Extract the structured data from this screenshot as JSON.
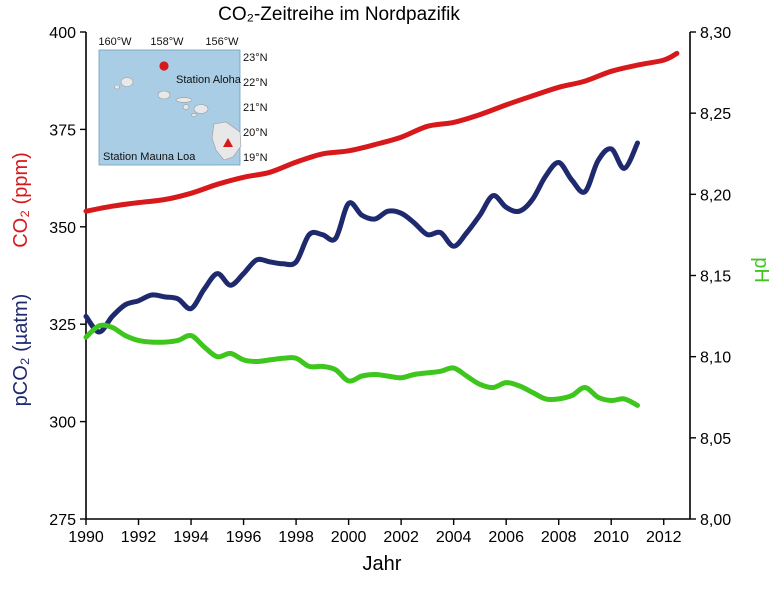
{
  "title": "CO₂-Zeitreihe im Nordpazifik",
  "chart_data": {
    "type": "line",
    "title": "CO₂-Zeitreihe im Nordpazifik",
    "xlabel": "Jahr",
    "ylabel_left_primary": "CO₂ (ppm)",
    "ylabel_left_secondary": "pCO₂ (µatm)",
    "ylabel_right": "pH",
    "xlim": [
      1990,
      2013
    ],
    "ylim_left": [
      275,
      400
    ],
    "ylim_right": [
      8.0,
      8.3
    ],
    "x_ticks": [
      "1990",
      "1992",
      "1994",
      "1996",
      "1998",
      "2000",
      "2002",
      "2004",
      "2006",
      "2008",
      "2010",
      "2012"
    ],
    "y_left_ticks": [
      "275",
      "300",
      "325",
      "350",
      "375",
      "400"
    ],
    "y_right_ticks": [
      "8,00",
      "8,05",
      "8,10",
      "8,15",
      "8,20",
      "8,25",
      "8,30"
    ],
    "grid": false,
    "series": [
      {
        "name": "CO₂ (ppm)",
        "axis": "left",
        "color": "#d7191c",
        "x": [
          1990,
          1991,
          1992,
          1993,
          1994,
          1995,
          1996,
          1997,
          1998,
          1999,
          2000,
          2001,
          2002,
          2003,
          2004,
          2005,
          2006,
          2007,
          2008,
          2009,
          2010,
          2011,
          2012,
          2012.5
        ],
        "y": [
          354,
          355.3,
          356.2,
          357,
          358.6,
          360.9,
          362.7,
          364,
          366.6,
          368.7,
          369.5,
          371.1,
          373,
          375.8,
          376.8,
          378.8,
          381.3,
          383.6,
          385.8,
          387.4,
          389.9,
          391.5,
          392.8,
          394.5
        ]
      },
      {
        "name": "pCO₂ (µatm)",
        "axis": "left",
        "color": "#1f2a6e",
        "x": [
          1990,
          1990.5,
          1991,
          1991.5,
          1992,
          1992.5,
          1993,
          1993.5,
          1994,
          1994.5,
          1995,
          1995.5,
          1996,
          1996.5,
          1997,
          1997.5,
          1998,
          1998.5,
          1999,
          1999.5,
          2000,
          2000.5,
          2001,
          2001.5,
          2002,
          2002.5,
          2003,
          2003.5,
          2004,
          2004.5,
          2005,
          2005.5,
          2006,
          2006.5,
          2007,
          2007.5,
          2008,
          2008.5,
          2009,
          2009.5,
          2010,
          2010.5,
          2011
        ],
        "y": [
          327,
          323,
          327,
          330,
          331,
          332.5,
          332,
          331.5,
          329,
          334,
          338,
          335,
          338,
          341.5,
          341,
          340.5,
          341,
          348,
          348,
          347,
          356,
          353,
          352,
          354,
          353.5,
          351,
          348,
          348.5,
          345,
          348.5,
          353,
          358,
          355,
          354,
          357,
          363,
          366.5,
          362,
          359,
          367,
          370,
          365,
          371.5
        ]
      },
      {
        "name": "pH",
        "axis": "right",
        "color": "#3ec61d",
        "x": [
          1990,
          1990.5,
          1991,
          1991.5,
          1992,
          1992.5,
          1993,
          1993.5,
          1994,
          1994.5,
          1995,
          1995.5,
          1996,
          1996.5,
          1997,
          1997.5,
          1998,
          1998.5,
          1999,
          1999.5,
          2000,
          2000.5,
          2001,
          2001.5,
          2002,
          2002.5,
          2003,
          2003.5,
          2004,
          2004.5,
          2005,
          2005.5,
          2006,
          2006.5,
          2007,
          2007.5,
          2008,
          2008.5,
          2009,
          2009.5,
          2010,
          2010.5,
          2011
        ],
        "y": [
          8.112,
          8.119,
          8.118,
          8.113,
          8.11,
          8.109,
          8.109,
          8.11,
          8.113,
          8.106,
          8.1,
          8.102,
          8.098,
          8.097,
          8.098,
          8.099,
          8.099,
          8.094,
          8.094,
          8.092,
          8.085,
          8.088,
          8.089,
          8.088,
          8.087,
          8.089,
          8.09,
          8.091,
          8.093,
          8.088,
          8.083,
          8.081,
          8.084,
          8.082,
          8.078,
          8.074,
          8.074,
          8.076,
          8.081,
          8.075,
          8.073,
          8.074,
          8.07
        ]
      }
    ],
    "inset": {
      "lon_labels": [
        "160°W",
        "158°W",
        "156°W"
      ],
      "lat_labels": [
        "23°N",
        "22°N",
        "21°N",
        "20°N",
        "19°N"
      ],
      "station_aloha": "Station Aloha",
      "station_mauna_loa": "Station Mauna Loa",
      "sea_color": "#a9cde4",
      "land_color": "#e8e8e8",
      "marker_color": "#d7191c"
    }
  }
}
